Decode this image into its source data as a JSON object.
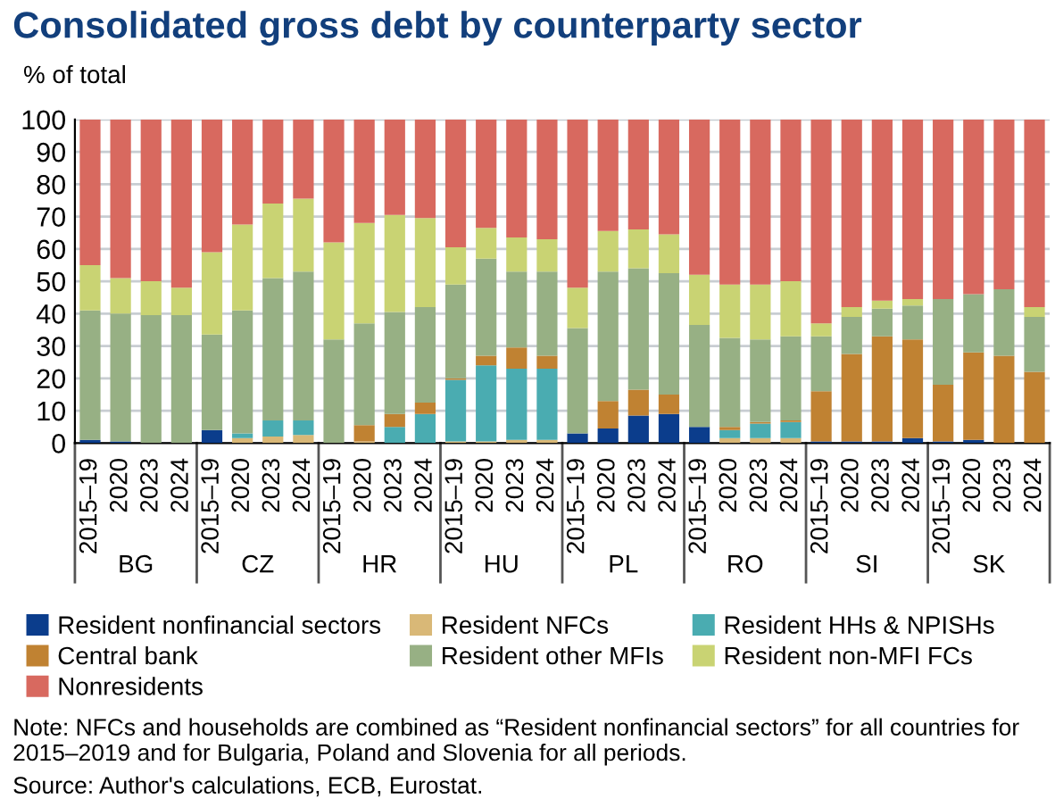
{
  "chart_data": {
    "type": "bar",
    "stacked": true,
    "title": "Consolidated gross debt by counterparty sector",
    "ylabel": "% of total",
    "categories": [
      "2015–19",
      "2020",
      "2023",
      "2024",
      "2015–19",
      "2020",
      "2023",
      "2024",
      "2015–19",
      "2020",
      "2023",
      "2024",
      "2015–19",
      "2020",
      "2023",
      "2024",
      "2015–19",
      "2020",
      "2023",
      "2024",
      "2015–19",
      "2020",
      "2023",
      "2024",
      "2015–19",
      "2020",
      "2023",
      "2024",
      "2015–19",
      "2020",
      "2023",
      "2024"
    ],
    "series": [
      {
        "name": "Resident nonfinancial sectors",
        "color": "#0b3d8c",
        "values": [
          1,
          0.5,
          0,
          0,
          4,
          0,
          0,
          0,
          0,
          0,
          0,
          0,
          0,
          0,
          0,
          0,
          3,
          4.5,
          8.5,
          9,
          5,
          0,
          0,
          0,
          0.5,
          0.5,
          0.5,
          1.5,
          0.5,
          1,
          0,
          0
        ]
      },
      {
        "name": "Resident NFCs",
        "color": "#d9b877",
        "values": [
          0,
          0,
          0,
          0,
          0,
          1.5,
          2,
          2.5,
          0,
          0.5,
          0,
          0,
          0.5,
          0.5,
          1,
          1,
          0,
          0,
          0,
          0,
          0,
          1.5,
          1.5,
          1.5,
          0,
          0,
          0,
          0,
          0,
          0,
          0,
          0
        ]
      },
      {
        "name": "Resident HHs & NPISHs",
        "color": "#4aacb1",
        "values": [
          0,
          0,
          0,
          0,
          0,
          1.5,
          5,
          4.5,
          0,
          0,
          5,
          9,
          19,
          23.5,
          22,
          22,
          0,
          0,
          0,
          0,
          0,
          2.5,
          4.5,
          5,
          0,
          0,
          0,
          0,
          0,
          0,
          0,
          0
        ]
      },
      {
        "name": "Central bank",
        "color": "#c08232",
        "values": [
          0,
          0,
          0,
          0,
          0,
          0,
          0,
          0,
          0,
          5,
          4,
          3.5,
          0.5,
          3,
          6.5,
          4,
          0,
          8.5,
          8,
          6,
          0,
          1,
          0.5,
          0.5,
          15.5,
          27,
          32.5,
          30.5,
          17.5,
          27,
          27,
          22
        ]
      },
      {
        "name": "Resident other MFIs",
        "color": "#97b084",
        "values": [
          40,
          39.5,
          39.5,
          39.5,
          29.5,
          38,
          44,
          46,
          32,
          31.5,
          31.5,
          29.5,
          29,
          30,
          23.5,
          26,
          32.5,
          40,
          37.5,
          37.5,
          31.5,
          27.5,
          25.5,
          26,
          17,
          11.5,
          8.5,
          10.5,
          26.5,
          18,
          20.5,
          17
        ]
      },
      {
        "name": "Resident non-MFI FCs",
        "color": "#c9d373",
        "values": [
          14,
          11,
          10.5,
          8.5,
          25.5,
          26.5,
          23,
          22.5,
          30,
          31,
          30,
          27.5,
          11.5,
          9.5,
          10.5,
          10,
          12.5,
          12.5,
          12,
          12,
          15.5,
          16.5,
          17,
          17,
          4,
          3,
          2.5,
          2,
          0,
          0,
          0,
          3
        ]
      },
      {
        "name": "Nonresidents",
        "color": "#d8695f",
        "values": [
          45,
          49,
          50,
          52,
          41,
          32.5,
          26,
          24.5,
          38,
          32,
          29.5,
          30.5,
          39.5,
          33.5,
          36.5,
          37,
          52,
          34.5,
          34,
          35.5,
          48,
          51,
          51,
          50,
          63,
          58,
          56,
          55.5,
          55.5,
          54,
          52.5,
          58
        ]
      }
    ],
    "ylim": [
      0,
      100
    ],
    "yticks": [
      0,
      10,
      20,
      30,
      40,
      50,
      60,
      70,
      80,
      90,
      100
    ],
    "grid": "y",
    "legend": "bottom",
    "annotations": [
      "BG",
      "CZ",
      "HR",
      "HU",
      "PL",
      "RO",
      "SI",
      "SK",
      "Note: NFCs and households are combined as “Resident nonfinancial sectors” for all countries for 2015–2019 and for Bulgaria, Poland and Slovenia for all periods.",
      "Source: Author's calculations, ECB, Eurostat."
    ]
  }
}
